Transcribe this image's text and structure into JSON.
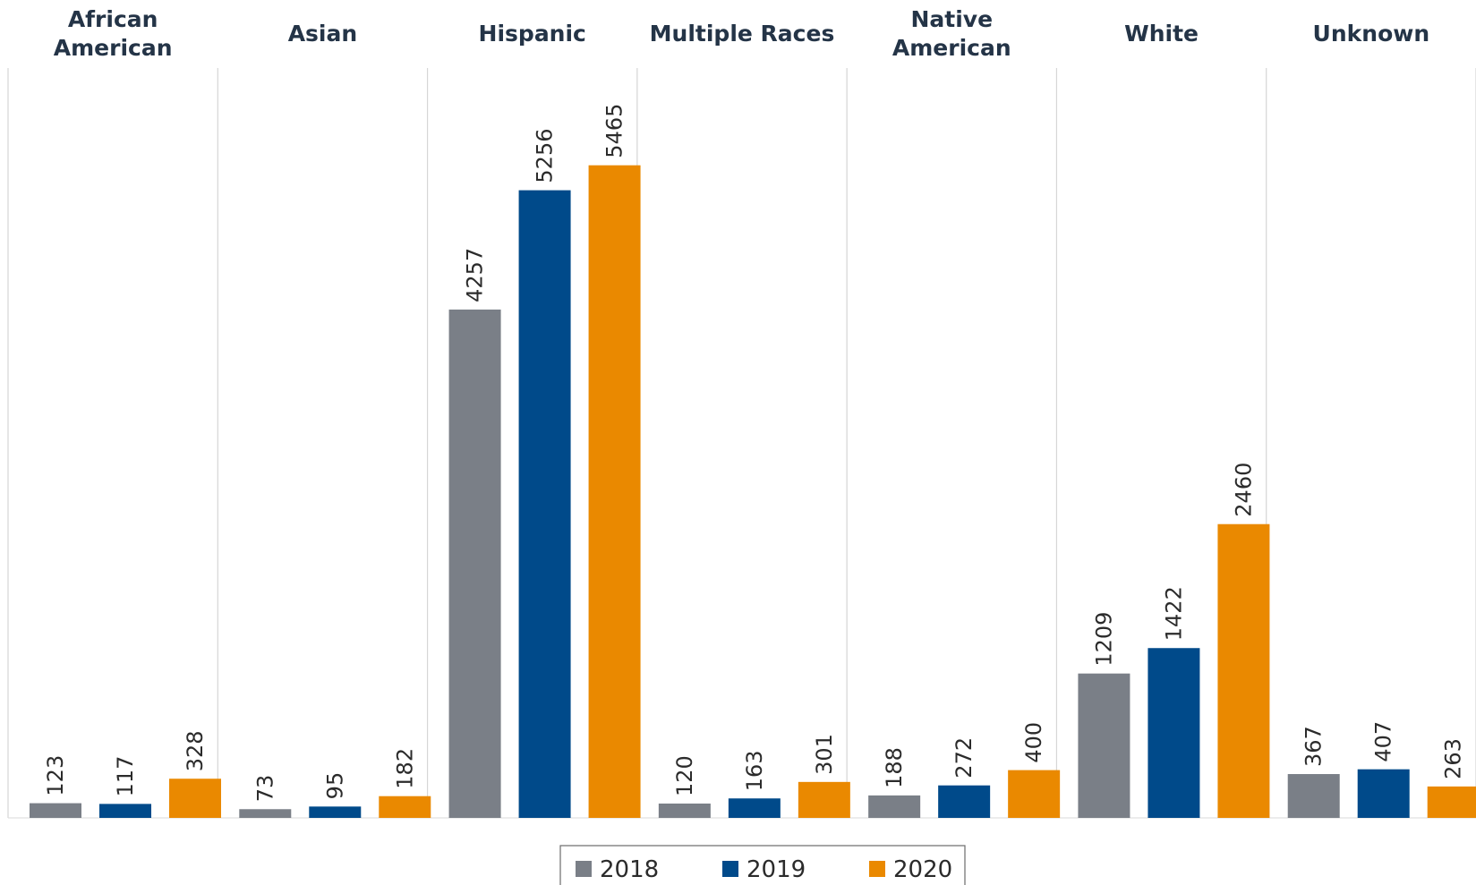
{
  "chart_data": {
    "type": "bar",
    "title": "",
    "xlabel": "",
    "ylabel": "",
    "ylim": [
      0,
      5800
    ],
    "grid": false,
    "legend_position": "bottom",
    "categories": [
      "African American",
      "Asian",
      "Hispanic",
      "Multiple Races",
      "Native American",
      "White",
      "Unknown"
    ],
    "category_lines": [
      [
        "African",
        "American"
      ],
      [
        "Asian"
      ],
      [
        "Hispanic"
      ],
      [
        "Multiple Races"
      ],
      [
        "Native",
        "American"
      ],
      [
        "White"
      ],
      [
        "Unknown"
      ]
    ],
    "series": [
      {
        "name": "2018",
        "color": "#7a7f87",
        "values": [
          123,
          73,
          4257,
          120,
          188,
          1209,
          367
        ]
      },
      {
        "name": "2019",
        "color": "#004a8a",
        "values": [
          117,
          95,
          5256,
          163,
          272,
          1422,
          407
        ]
      },
      {
        "name": "2020",
        "color": "#ea8900",
        "values": [
          328,
          182,
          5465,
          301,
          400,
          2460,
          263
        ]
      }
    ]
  }
}
